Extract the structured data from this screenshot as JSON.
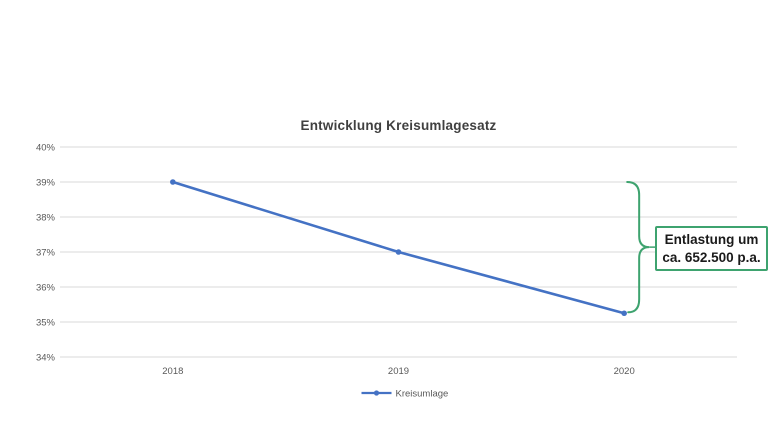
{
  "chart_data": {
    "type": "line",
    "title": "Entwicklung Kreisumlagesatz",
    "categories": [
      "2018",
      "2019",
      "2020"
    ],
    "series": [
      {
        "name": "Kreisumlage",
        "values": [
          39,
          37,
          35.25
        ]
      }
    ],
    "ylabel": "",
    "xlabel": "",
    "ylim": [
      34,
      40
    ],
    "ytick_step": 1,
    "ytick_labels": [
      "40%",
      "39%",
      "38%",
      "37%",
      "36%",
      "35%",
      "34%"
    ],
    "grid": true,
    "legend_position": "bottom",
    "line_color": "#4472C4",
    "grid_color": "#D9D9D9",
    "axis_label_color": "#595959",
    "annotation_brace_color": "#3EA36F"
  },
  "annotation": {
    "line1": "Entlastung um",
    "line2": "ca. 652.500 p.a.",
    "border_color": "#3EA36F"
  }
}
